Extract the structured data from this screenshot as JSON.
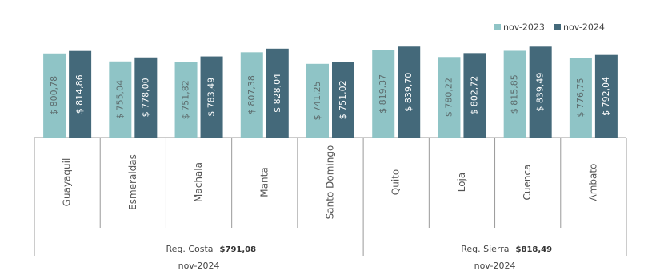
{
  "chart_data": {
    "type": "bar",
    "groups": [
      {
        "name": "Reg. Costa",
        "total": "$791,08",
        "period": "nov-2024",
        "categories": [
          "Guayaquil",
          "Esmeraldas",
          "Machala",
          "Manta",
          "Santo Domingo"
        ]
      },
      {
        "name": "Reg. Sierra",
        "total": "$818,49",
        "period": "nov-2024",
        "categories": [
          "Quito",
          "Loja",
          "Cuenca",
          "Ambato"
        ]
      }
    ],
    "series": [
      {
        "name": "nov-2023",
        "color": "#8fc4c6",
        "values": [
          800.78,
          755.04,
          751.82,
          807.38,
          741.25,
          819.37,
          780.22,
          815.85,
          776.75
        ],
        "value_labels": [
          "$ 800,78",
          "$ 755,04",
          "$ 751,82",
          "$ 807,38",
          "$ 741,25",
          "$ 819,37",
          "$ 780,22",
          "$ 815,85",
          "$ 776,75"
        ]
      },
      {
        "name": "nov-2024",
        "color": "#44697a",
        "values": [
          814.86,
          778.0,
          783.49,
          828.04,
          751.02,
          839.7,
          802.72,
          839.49,
          792.04
        ],
        "value_labels": [
          "$ 814,86",
          "$ 778,00",
          "$ 783,49",
          "$ 828,04",
          "$ 751,02",
          "$ 839,70",
          "$ 802,72",
          "$ 839,49",
          "$ 792,04"
        ]
      }
    ],
    "ylim": [
      320,
      850
    ],
    "legend": "top-right"
  }
}
